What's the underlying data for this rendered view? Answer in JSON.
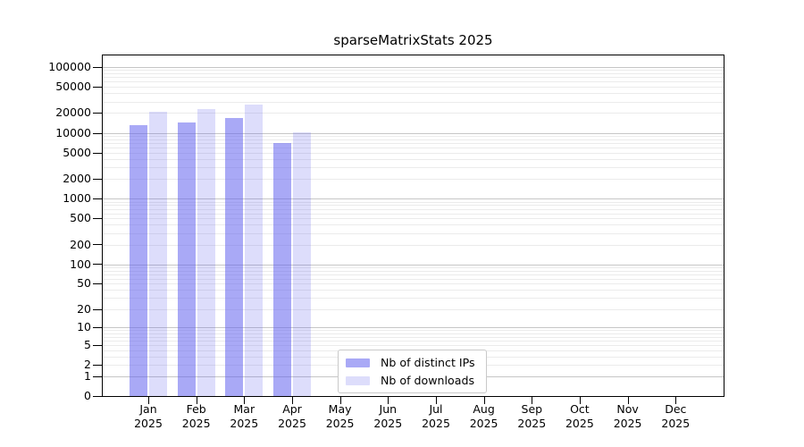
{
  "chart_data": {
    "type": "bar",
    "title": "sparseMatrixStats 2025",
    "categories": [
      "Jan 2025",
      "Feb 2025",
      "Mar 2025",
      "Apr 2025",
      "May 2025",
      "Jun 2025",
      "Jul 2025",
      "Aug 2025",
      "Sep 2025",
      "Oct 2025",
      "Nov 2025",
      "Dec 2025"
    ],
    "series": [
      {
        "name": "Nb of distinct IPs",
        "color": "#a8a8f3",
        "fill": "rgba(98,98,238,0.55)",
        "values": [
          13000,
          14400,
          16600,
          7000,
          null,
          null,
          null,
          null,
          null,
          null,
          null,
          null
        ]
      },
      {
        "name": "Nb of downloads",
        "color": "#dcdcf8",
        "fill": "rgba(98,98,238,0.22)",
        "values": [
          21000,
          23000,
          27000,
          10200,
          null,
          null,
          null,
          null,
          null,
          null,
          null,
          null
        ]
      }
    ],
    "yscale": "log1p",
    "ylim": [
      0,
      150000
    ],
    "yticks": [
      100000,
      50000,
      20000,
      10000,
      5000,
      2000,
      1000,
      500,
      200,
      100,
      50,
      20,
      10,
      5,
      2,
      1,
      0
    ],
    "xlabel": "",
    "ylabel": "",
    "grid": "horizontal major and minor gridlines",
    "legend_position": "inside lower center"
  },
  "colors": {
    "grid_major": "#c6c6c6",
    "grid_minor": "#ebebeb",
    "axis": "#000000",
    "background": "#ffffff"
  }
}
